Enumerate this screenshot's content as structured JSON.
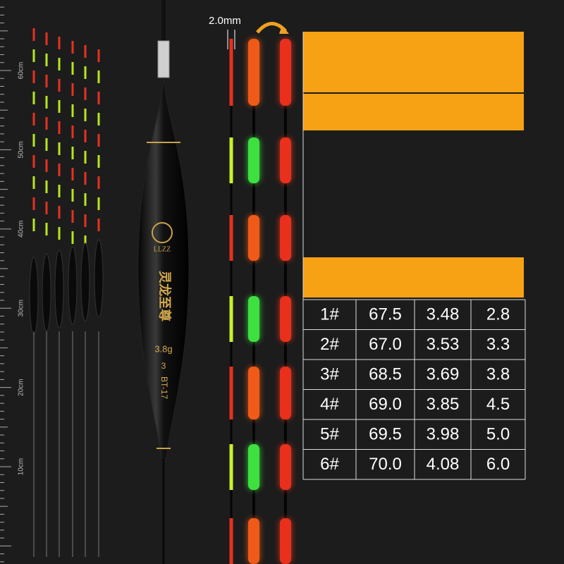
{
  "ruler": {
    "labels": [
      "60cm",
      "50cm",
      "40cm",
      "30cm",
      "20cm",
      "10cm"
    ]
  },
  "diameter_label": "2.0mm",
  "float": {
    "brand": "LLZZ",
    "name": "灵龙至尊",
    "weight": "3.8g",
    "number": "3",
    "model": "BT-17"
  },
  "table": {
    "rows": [
      [
        "1#",
        "67.5",
        "3.48",
        "2.8"
      ],
      [
        "2#",
        "67.0",
        "3.53",
        "3.3"
      ],
      [
        "3#",
        "68.5",
        "3.69",
        "3.8"
      ],
      [
        "4#",
        "69.0",
        "3.85",
        "4.5"
      ],
      [
        "5#",
        "69.5",
        "3.98",
        "5.0"
      ],
      [
        "6#",
        "70.0",
        "4.08",
        "6.0"
      ]
    ]
  }
}
